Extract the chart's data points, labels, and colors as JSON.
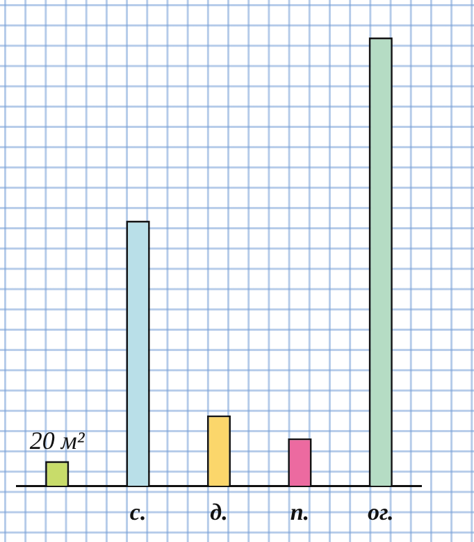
{
  "chart_data": {
    "type": "bar",
    "categories": [
      null,
      "с.",
      "д.",
      "п.",
      "ог."
    ],
    "values": [
      20,
      230,
      60,
      40,
      390
    ],
    "colors": [
      "#c8dc6a",
      "#b9dfe8",
      "#fbd66b",
      "#ec6aa0",
      "#b5dcc4"
    ],
    "value_labels": [
      "20 м²",
      null,
      null,
      null,
      null
    ],
    "grid": false,
    "legend": false
  }
}
